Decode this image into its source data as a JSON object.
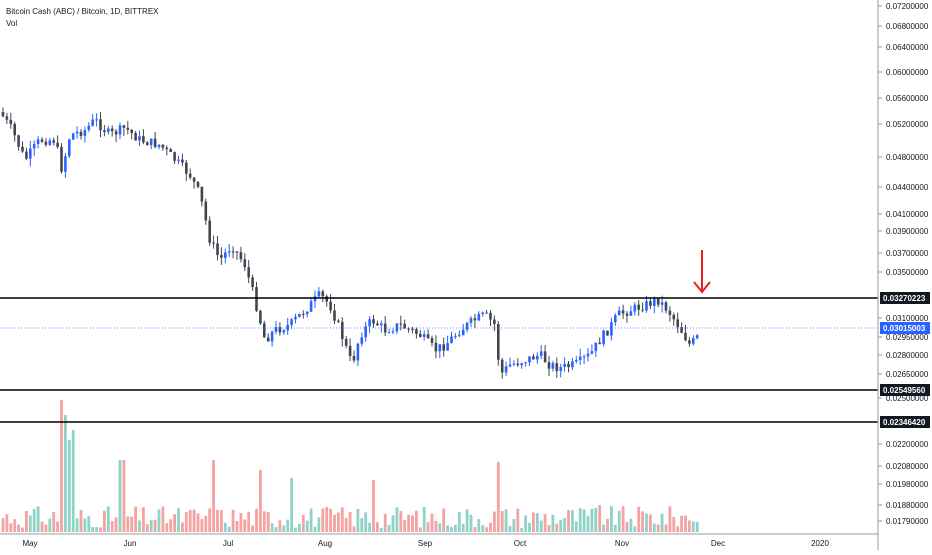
{
  "header": {
    "title": "Bitcoin Cash (ABC) / Bitcoin, 1D, BITTREX",
    "volume_label": "Vol"
  },
  "colors": {
    "up": "#2962ff",
    "down": "#434651",
    "vol_up": "#8fd3c8",
    "vol_down": "#f4a3a0",
    "level_line": "#000000",
    "price_line": "#2962ff",
    "arrow": "#e8201f"
  },
  "chart_data": {
    "type": "candlestick",
    "title": "Bitcoin Cash (ABC) / Bitcoin, 1D, BITTREX",
    "price_axis_ticks": [
      "0.07200000",
      "0.06800000",
      "0.06400000",
      "0.06000000",
      "0.05600000",
      "0.05200000",
      "0.04800000",
      "0.04400000",
      "0.04100000",
      "0.03900000",
      "0.03700000",
      "0.03500000",
      "0.03100000",
      "0.02950000",
      "0.02800000",
      "0.02650000",
      "0.02500000",
      "0.02200000",
      "0.02080000",
      "0.01980000",
      "0.01880000",
      "0.01790000"
    ],
    "time_axis_labels": [
      "May",
      "Jun",
      "Jul",
      "Aug",
      "Sep",
      "Oct",
      "Nov",
      "Dec",
      "2020"
    ],
    "price_labels": {
      "resistance": "0.03270223",
      "current": "0.03015003",
      "support": "0.02549560",
      "lower": "0.02346420"
    },
    "grid": false,
    "annotations": [
      "red down arrow above resistance level near late November"
    ]
  }
}
